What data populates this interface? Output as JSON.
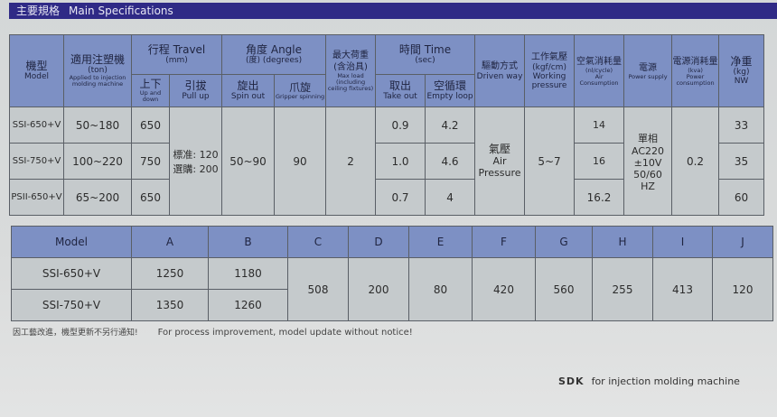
{
  "banner": {
    "zh": "主要規格",
    "en": "Main Specifications"
  },
  "spec_table": {
    "headers": {
      "model": {
        "zh": "機型",
        "en": "Model"
      },
      "applied": {
        "zh": "適用注塑機",
        "unit": "(ton)",
        "en": "Applied to injection molding machine"
      },
      "travel": {
        "zh": "行程",
        "en": "Travel",
        "unit": "(mm)"
      },
      "updown": {
        "zh": "上下",
        "en": "Up and down"
      },
      "pullup": {
        "zh": "引拔",
        "en": "Pull up"
      },
      "angle": {
        "zh": "角度",
        "en": "Angle",
        "unit": "(度) (degrees)"
      },
      "spinout": {
        "zh": "旋出",
        "en": "Spin out"
      },
      "gripper": {
        "zh": "爪旋",
        "en": "Gripper spinning"
      },
      "maxload": {
        "zh": "最大荷重",
        "zh2": "(含治具)",
        "en": "Max load (including ceiling fixtures)"
      },
      "time": {
        "zh": "時間",
        "en": "Time",
        "unit": "(sec)"
      },
      "takeout": {
        "zh": "取出",
        "en": "Take out"
      },
      "emptyloop": {
        "zh": "空循環",
        "en": "Empty loop"
      },
      "driven": {
        "zh": "驅動方式",
        "en": "Driven way"
      },
      "working": {
        "zh": "工作氣壓",
        "unit": "(kgf/cm)",
        "en": "Working pressure"
      },
      "air": {
        "zh": "空氣消耗量",
        "unit": "(nl/cycle)",
        "en": "Air Consumption"
      },
      "power": {
        "zh": "電源",
        "en": "Power supply"
      },
      "powercons": {
        "zh": "電源消耗量",
        "unit": "(kva)",
        "en": "Power consumption"
      },
      "nw": {
        "zh": "净重",
        "unit": "(kg)",
        "en": "NW"
      }
    },
    "rows": [
      {
        "model": "SSI-650+V",
        "applied": "50~180",
        "updown": "650",
        "takeout": "0.9",
        "emptyloop": "4.2",
        "air": "14",
        "nw": "33"
      },
      {
        "model": "SSI-750+V",
        "applied": "100~220",
        "updown": "750",
        "takeout": "1.0",
        "emptyloop": "4.6",
        "air": "16",
        "nw": "35"
      },
      {
        "model": "PSII-650+V",
        "applied": "65~200",
        "updown": "650",
        "takeout": "0.7",
        "emptyloop": "4",
        "air": "16.2",
        "nw": "60"
      }
    ],
    "shared": {
      "pullup": "標准: 120 選購: 200",
      "spinout": "50~90",
      "gripper": "90",
      "maxload": "2",
      "driven_zh": "氣壓",
      "driven_en": "Air Pressure",
      "working": "5~7",
      "power": "單相 AC220 ±10V 50/60 HZ",
      "powercons": "0.2"
    }
  },
  "dim_table": {
    "headers": [
      "Model",
      "A",
      "B",
      "C",
      "D",
      "E",
      "F",
      "G",
      "H",
      "I",
      "J"
    ],
    "rows": [
      {
        "model": "SSI-650+V",
        "A": "1250",
        "B": "1180"
      },
      {
        "model": "SSI-750+V",
        "A": "1350",
        "B": "1260"
      }
    ],
    "shared": {
      "C": "508",
      "D": "200",
      "E": "80",
      "F": "420",
      "G": "560",
      "H": "255",
      "I": "413",
      "J": "120"
    }
  },
  "footer": {
    "zh": "因工藝改進，機型更新不另行通知!",
    "en": "For process improvement, model update without notice!"
  },
  "brand": {
    "logo": "SDK",
    "tagline": "for injection molding machine"
  },
  "colors": {
    "banner": "#2f2a86",
    "header": "#7d90c4",
    "cell": "#c5cacc"
  }
}
